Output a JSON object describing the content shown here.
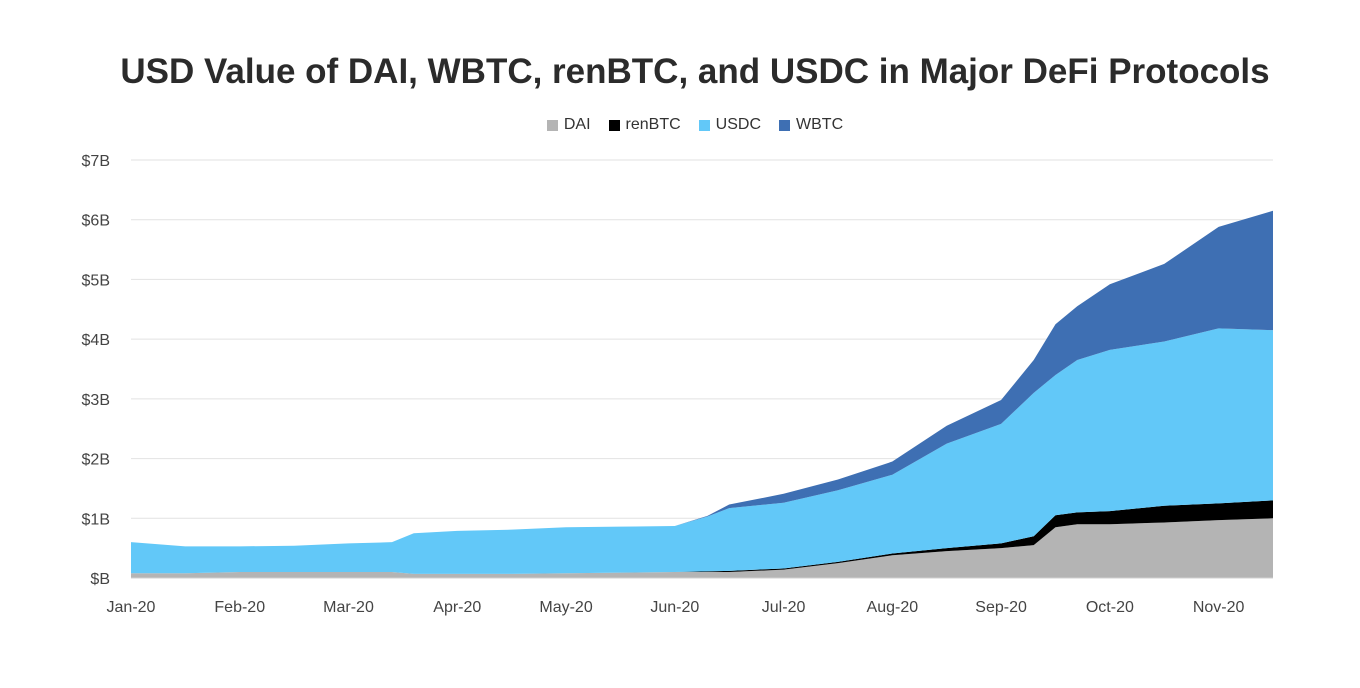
{
  "chart_data": {
    "type": "area",
    "stacked": true,
    "title": "USD Value of DAI, WBTC, renBTC, and USDC in Major DeFi Protocols",
    "xlabel": "",
    "ylabel": "",
    "ylim": [
      0,
      7
    ],
    "y_ticks": [
      "$B",
      "$1B",
      "$2B",
      "$3B",
      "$4B",
      "$5B",
      "$6B",
      "$7B"
    ],
    "x_ticks": [
      "Jan-20",
      "Feb-20",
      "Mar-20",
      "Apr-20",
      "May-20",
      "Jun-20",
      "Jul-20",
      "Aug-20",
      "Sep-20",
      "Oct-20",
      "Nov-20"
    ],
    "grid": true,
    "legend_position": "top",
    "x": [
      0,
      0.5,
      1,
      1.5,
      2,
      2.4,
      2.6,
      3,
      3.5,
      4,
      4.5,
      5,
      5.3,
      5.5,
      6,
      6.5,
      7,
      7.5,
      8,
      8.3,
      8.5,
      8.7,
      9,
      9.5,
      10,
      10.5
    ],
    "series": [
      {
        "name": "DAI",
        "color": "#b4b4b4",
        "values": [
          0.08,
          0.08,
          0.1,
          0.1,
          0.1,
          0.1,
          0.07,
          0.07,
          0.07,
          0.08,
          0.09,
          0.1,
          0.1,
          0.1,
          0.14,
          0.25,
          0.38,
          0.45,
          0.5,
          0.55,
          0.85,
          0.9,
          0.9,
          0.93,
          0.97,
          1.0
        ]
      },
      {
        "name": "renBTC",
        "color": "#000000",
        "values": [
          0,
          0,
          0,
          0,
          0,
          0,
          0,
          0,
          0,
          0,
          0,
          0,
          0.01,
          0.02,
          0.02,
          0.02,
          0.03,
          0.05,
          0.08,
          0.15,
          0.2,
          0.2,
          0.22,
          0.28,
          0.28,
          0.3
        ]
      },
      {
        "name": "USDC",
        "color": "#62c8f8",
        "values": [
          0.52,
          0.45,
          0.43,
          0.44,
          0.48,
          0.5,
          0.68,
          0.72,
          0.74,
          0.77,
          0.77,
          0.77,
          0.92,
          1.05,
          1.1,
          1.2,
          1.32,
          1.75,
          2.0,
          2.4,
          2.35,
          2.55,
          2.7,
          2.75,
          2.93,
          2.85
        ]
      },
      {
        "name": "WBTC",
        "color": "#3e6fb3",
        "values": [
          0,
          0,
          0,
          0,
          0,
          0,
          0,
          0,
          0,
          0,
          0,
          0,
          0.01,
          0.06,
          0.15,
          0.18,
          0.22,
          0.3,
          0.4,
          0.55,
          0.85,
          0.9,
          1.1,
          1.3,
          1.7,
          2.0
        ]
      }
    ]
  }
}
